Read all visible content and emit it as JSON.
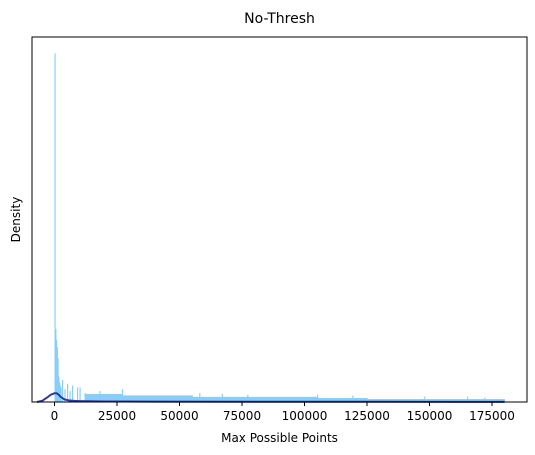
{
  "chart_data": {
    "type": "bar",
    "title": "No-Thresh",
    "xlabel": "Max Possible Points",
    "ylabel": "Density",
    "xlim": [
      -9000,
      189000
    ],
    "ylim": [
      0,
      1.0
    ],
    "x_ticks": [
      0,
      25000,
      50000,
      75000,
      100000,
      125000,
      150000,
      175000
    ],
    "x_tick_labels": [
      "0",
      "25000",
      "50000",
      "75000",
      "100000",
      "125000",
      "150000",
      "175000"
    ],
    "y_ticks_shown": false,
    "grid": false,
    "legend": "none",
    "histogram": {
      "bin_width": 300,
      "range": [
        0,
        180000
      ],
      "color": "#87CEFA",
      "peak": {
        "x": 0,
        "density": 0.955
      },
      "first_bins": [
        {
          "x": 300,
          "density": 0.2
        },
        {
          "x": 600,
          "density": 0.17
        },
        {
          "x": 900,
          "density": 0.15
        },
        {
          "x": 1200,
          "density": 0.12
        },
        {
          "x": 1500,
          "density": 0.07
        },
        {
          "x": 1800,
          "density": 0.055
        },
        {
          "x": 2100,
          "density": 0.045
        },
        {
          "x": 2400,
          "density": 0.04
        },
        {
          "x": 3000,
          "density": 0.06
        },
        {
          "x": 4000,
          "density": 0.035
        },
        {
          "x": 5000,
          "density": 0.05
        },
        {
          "x": 6000,
          "density": 0.03
        },
        {
          "x": 7000,
          "density": 0.045
        },
        {
          "x": 9000,
          "density": 0.04
        },
        {
          "x": 10000,
          "density": 0.04
        },
        {
          "x": 12000,
          "density": 0.025
        }
      ],
      "segments": [
        {
          "from": 12000,
          "to": 27000,
          "density": 0.022
        },
        {
          "from": 27000,
          "to": 55000,
          "density": 0.018
        },
        {
          "from": 55000,
          "to": 105000,
          "density": 0.014
        },
        {
          "from": 105000,
          "to": 125000,
          "density": 0.011
        },
        {
          "from": 125000,
          "to": 180000,
          "density": 0.008
        }
      ],
      "spikes": [
        {
          "x": 18000,
          "density": 0.03
        },
        {
          "x": 27000,
          "density": 0.035
        },
        {
          "x": 58000,
          "density": 0.025
        },
        {
          "x": 67000,
          "density": 0.022
        },
        {
          "x": 77000,
          "density": 0.02
        },
        {
          "x": 105000,
          "density": 0.02
        },
        {
          "x": 119000,
          "density": 0.018
        },
        {
          "x": 148000,
          "density": 0.015
        },
        {
          "x": 165000,
          "density": 0.015
        },
        {
          "x": 172000,
          "density": 0.012
        }
      ]
    },
    "kde": {
      "color": "#2B3A9B",
      "x": [
        -7000,
        -5000,
        -3000,
        -1500,
        0,
        800,
        1500,
        2500,
        4000,
        6000,
        8000,
        10000,
        14000,
        20000,
        40000,
        80000,
        120000,
        160000,
        180000
      ],
      "y": [
        0.0,
        0.003,
        0.012,
        0.02,
        0.024,
        0.024,
        0.021,
        0.014,
        0.007,
        0.004,
        0.003,
        0.0025,
        0.002,
        0.0015,
        0.001,
        0.0008,
        0.0006,
        0.0004,
        0.0002
      ]
    }
  }
}
